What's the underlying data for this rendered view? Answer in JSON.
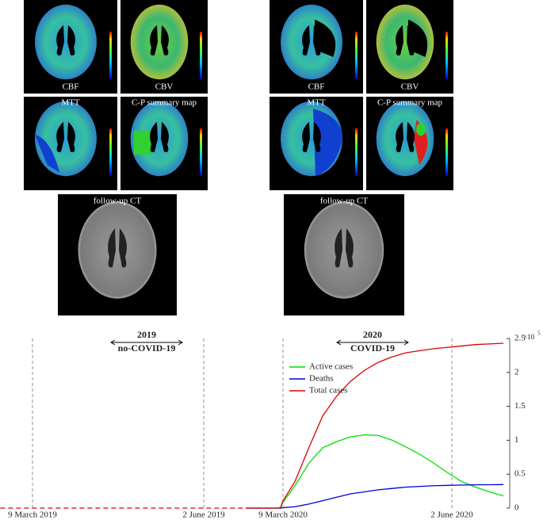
{
  "figures": [
    {
      "panels": [
        "CBF",
        "CBV",
        "MTT",
        "C-P summary map",
        "follow-up CT"
      ]
    },
    {
      "panels": [
        "CBF",
        "CBV",
        "MTT",
        "C-P summary map",
        "follow-up CT"
      ]
    }
  ],
  "chart_data": {
    "type": "line",
    "periods": [
      {
        "year": "2019",
        "label": "no-COVID-19"
      },
      {
        "year": "2020",
        "label": "COVID-19"
      }
    ],
    "x": [
      "2019-02-21",
      "2019-10-29",
      "2020-02-23",
      "2020-03-01",
      "2020-03-08",
      "2020-03-15",
      "2020-03-22",
      "2020-03-29",
      "2020-04-05",
      "2020-04-12",
      "2020-04-19",
      "2020-04-26",
      "2020-05-03",
      "2020-05-10",
      "2020-05-17",
      "2020-05-24",
      "2020-05-31",
      "2020-06-07",
      "2020-06-14",
      "2020-06-21",
      "2020-06-28"
    ],
    "dashed_until": "2019-10-29",
    "series": [
      {
        "name": "Active cases",
        "color": "#00e000",
        "values": [
          null,
          0,
          0,
          1500,
          8000,
          33000,
          66000,
          89000,
          98000,
          105000,
          108000,
          107000,
          100000,
          90000,
          79000,
          66000,
          52000,
          39000,
          31000,
          24000,
          18000
        ]
      },
      {
        "name": "Deaths",
        "color": "#0000e0",
        "values": [
          null,
          0,
          0,
          0,
          500,
          2000,
          6000,
          11000,
          16000,
          21000,
          24000,
          27000,
          29000,
          31000,
          32000,
          33000,
          33500,
          34000,
          34300,
          34500,
          34700
        ]
      },
      {
        "name": "Total cases",
        "color": "#e00000",
        "values": [
          0,
          0,
          0,
          1500,
          10000,
          39000,
          89000,
          136000,
          165000,
          187000,
          203000,
          215000,
          223000,
          229000,
          232000,
          235000,
          237000,
          239000,
          241000,
          242000,
          243000
        ]
      }
    ],
    "xticks": [
      {
        "value": "2019-03-09",
        "label": "9 March 2019"
      },
      {
        "value": "2019-06-02",
        "label": "2 June 2019"
      },
      {
        "value": "2020-03-09",
        "label": "9 March 2020"
      },
      {
        "value": "2020-06-02",
        "label": "2 June 2020"
      }
    ],
    "ylim": [
      0,
      250000
    ],
    "yticks": [
      {
        "value": 0,
        "label": "0"
      },
      {
        "value": 50000,
        "label": "0.5"
      },
      {
        "value": 100000,
        "label": "1"
      },
      {
        "value": 150000,
        "label": "1.5"
      },
      {
        "value": 200000,
        "label": "2"
      },
      {
        "value": 250000,
        "label": "2.5"
      }
    ],
    "y_multiplier": "×10",
    "y_exponent": "5",
    "grid": true
  }
}
